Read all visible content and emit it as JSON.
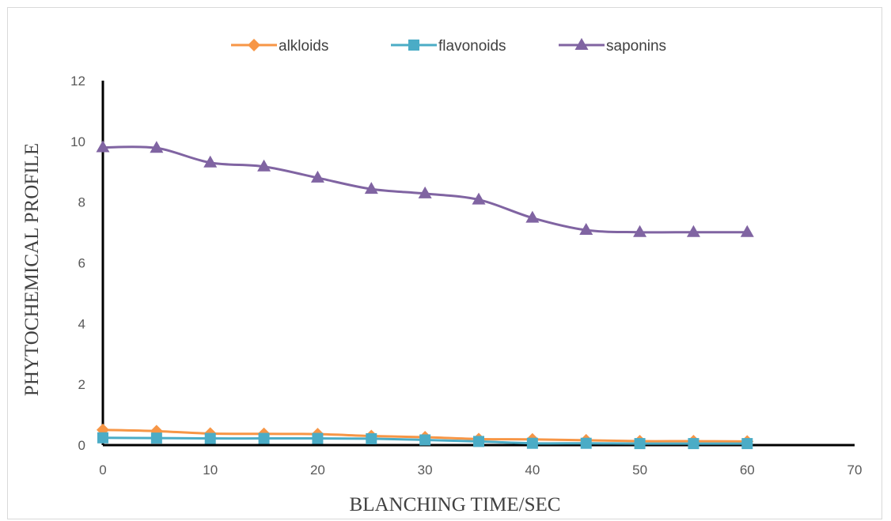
{
  "chart_data": {
    "type": "line",
    "xlabel": "BLANCHING TIME/SEC",
    "ylabel": "PHYTOCHEMICAL PROFILE",
    "xlim": [
      0,
      70
    ],
    "ylim": [
      0,
      12
    ],
    "x_ticks": [
      "0",
      "10",
      "20",
      "30",
      "40",
      "50",
      "60",
      "70"
    ],
    "y_ticks": [
      "0",
      "2",
      "4",
      "6",
      "8",
      "10",
      "12"
    ],
    "x": [
      0,
      5,
      10,
      15,
      20,
      25,
      30,
      35,
      40,
      45,
      50,
      55,
      60
    ],
    "legend_position": "top",
    "grid": false,
    "series": [
      {
        "name": "alkloids",
        "color": "#F79646",
        "marker": "diamond",
        "values": [
          0.5,
          0.46,
          0.38,
          0.37,
          0.36,
          0.3,
          0.26,
          0.2,
          0.19,
          0.16,
          0.13,
          0.13,
          0.12
        ]
      },
      {
        "name": "flavonoids",
        "color": "#4BACC6",
        "marker": "square",
        "values": [
          0.24,
          0.23,
          0.22,
          0.22,
          0.22,
          0.21,
          0.17,
          0.12,
          0.06,
          0.06,
          0.05,
          0.05,
          0.05
        ]
      },
      {
        "name": "saponins",
        "color": "#8064A2",
        "marker": "triangle",
        "values": [
          9.8,
          9.78,
          9.3,
          9.17,
          8.8,
          8.43,
          8.28,
          8.08,
          7.48,
          7.08,
          7.01,
          7.01,
          7.01
        ]
      }
    ]
  }
}
